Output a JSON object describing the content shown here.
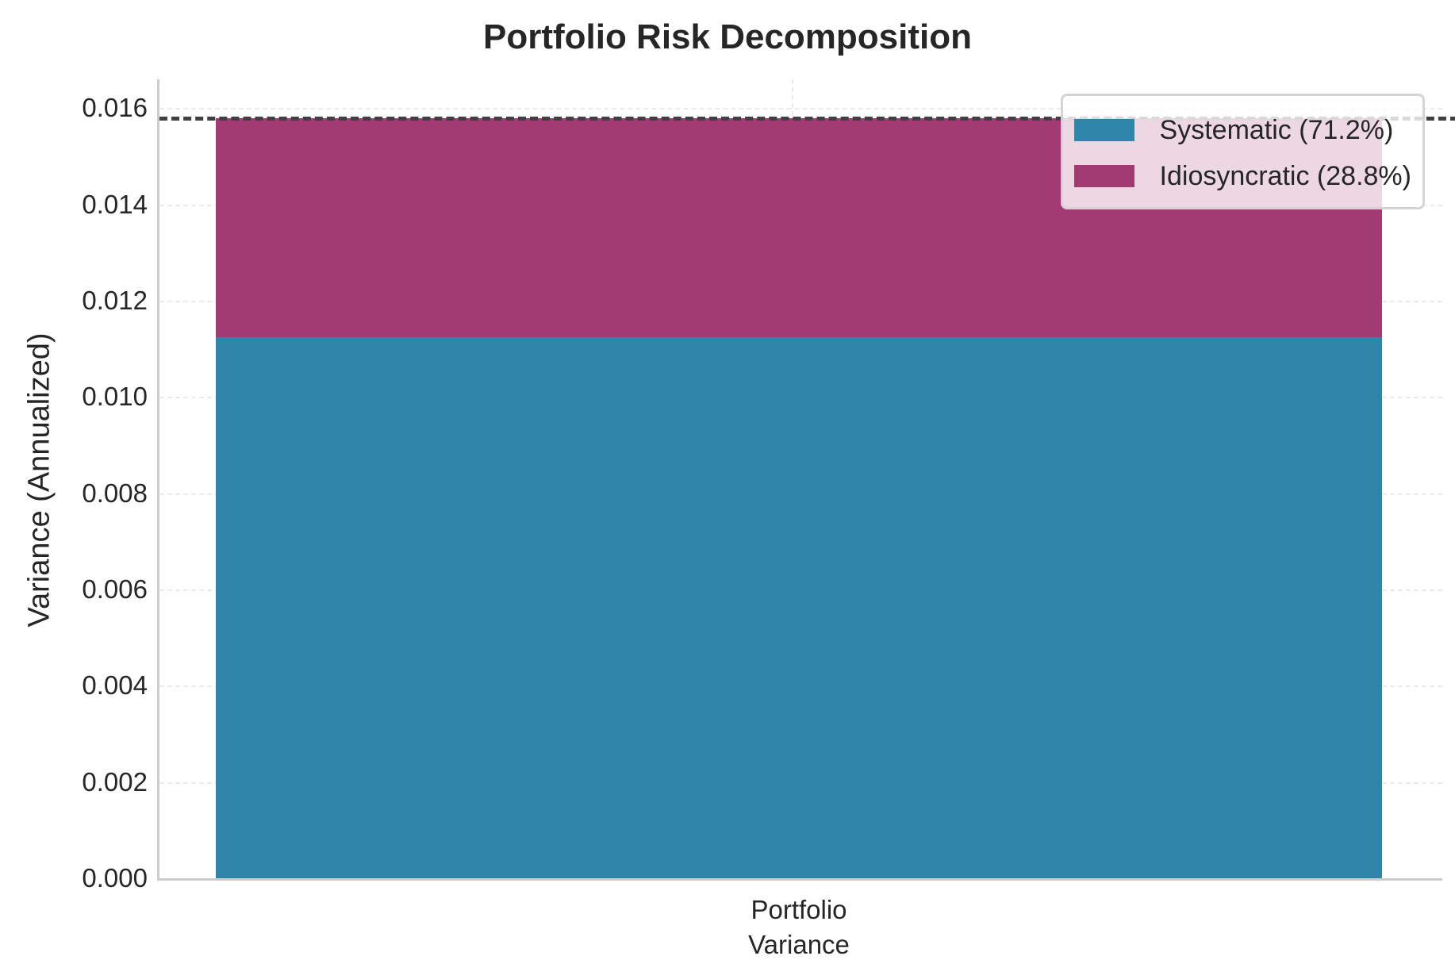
{
  "chart_data": {
    "type": "bar",
    "stacked": true,
    "title": "Portfolio Risk Decomposition",
    "xlabel": "",
    "ylabel": "Variance (Annualized)",
    "categories": [
      "Portfolio\nVariance"
    ],
    "series": [
      {
        "name": "Systematic (71.2%)",
        "values": [
          0.01125
        ],
        "color": "#2E86AB"
      },
      {
        "name": "Idiosyncratic (28.8%)",
        "values": [
          0.00455
        ],
        "color": "#A23B72"
      }
    ],
    "total_line": {
      "value": 0.0158,
      "style": "dashed",
      "color": "#404040"
    },
    "ylim": [
      0,
      0.0166
    ],
    "yticks": [
      "0.000",
      "0.002",
      "0.004",
      "0.006",
      "0.008",
      "0.010",
      "0.012",
      "0.014",
      "0.016"
    ],
    "grid": true,
    "legend_position": "upper right"
  },
  "title": "Portfolio Risk Decomposition",
  "ylabel": "Variance (Annualized)",
  "xlabel": "Portfolio\nVariance",
  "legend": [
    {
      "label": "Systematic (71.2%)",
      "color": "#2E86AB"
    },
    {
      "label": "Idiosyncratic (28.8%)",
      "color": "#A23B72"
    }
  ]
}
